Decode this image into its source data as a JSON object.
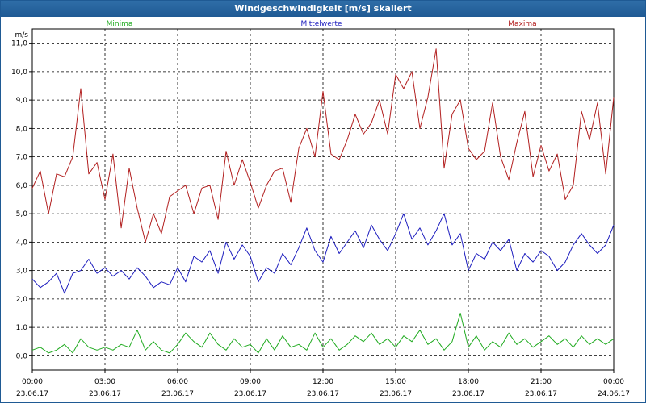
{
  "window": {
    "title": "Windgeschwindigkeit [m/s] skaliert"
  },
  "chart_data": {
    "type": "line",
    "title": "Windgeschwindigkeit [m/s] skaliert",
    "ylabel": "m/s",
    "xlabel": "",
    "ylim": [
      -0.5,
      11.5
    ],
    "xlim": [
      0,
      24
    ],
    "grid": true,
    "legend_position": "top",
    "yticks": [
      0.0,
      1.0,
      2.0,
      3.0,
      4.0,
      5.0,
      6.0,
      7.0,
      8.0,
      9.0,
      10.0,
      11.0
    ],
    "ytick_labels": [
      "0,0",
      "1,0",
      "2,0",
      "3,0",
      "4,0",
      "5,0",
      "6,0",
      "7,0",
      "8,0",
      "9,0",
      "10,0",
      "11,0"
    ],
    "xticks": [
      0,
      3,
      6,
      9,
      12,
      15,
      18,
      21,
      24
    ],
    "xtick_labels": [
      {
        "time": "00:00",
        "date": "23.06.17"
      },
      {
        "time": "03:00",
        "date": "23.06.17"
      },
      {
        "time": "06:00",
        "date": "23.06.17"
      },
      {
        "time": "09:00",
        "date": "23.06.17"
      },
      {
        "time": "12:00",
        "date": "23.06.17"
      },
      {
        "time": "15:00",
        "date": "23.06.17"
      },
      {
        "time": "18:00",
        "date": "23.06.17"
      },
      {
        "time": "21:00",
        "date": "23.06.17"
      },
      {
        "time": "00:00",
        "date": "24.06.17"
      }
    ],
    "series": [
      {
        "name": "Minima",
        "color": "#1faa1f",
        "points": [
          [
            0,
            0.2
          ],
          [
            0.33,
            0.3
          ],
          [
            0.67,
            0.1
          ],
          [
            1,
            0.2
          ],
          [
            1.33,
            0.4
          ],
          [
            1.67,
            0.1
          ],
          [
            2,
            0.6
          ],
          [
            2.33,
            0.3
          ],
          [
            2.67,
            0.2
          ],
          [
            3,
            0.3
          ],
          [
            3.33,
            0.2
          ],
          [
            3.67,
            0.4
          ],
          [
            4,
            0.3
          ],
          [
            4.33,
            0.9
          ],
          [
            4.67,
            0.2
          ],
          [
            5,
            0.5
          ],
          [
            5.33,
            0.2
          ],
          [
            5.67,
            0.1
          ],
          [
            6,
            0.4
          ],
          [
            6.33,
            0.8
          ],
          [
            6.67,
            0.5
          ],
          [
            7,
            0.3
          ],
          [
            7.33,
            0.8
          ],
          [
            7.67,
            0.4
          ],
          [
            8,
            0.2
          ],
          [
            8.33,
            0.6
          ],
          [
            8.67,
            0.3
          ],
          [
            9,
            0.4
          ],
          [
            9.33,
            0.1
          ],
          [
            9.67,
            0.6
          ],
          [
            10,
            0.2
          ],
          [
            10.33,
            0.7
          ],
          [
            10.67,
            0.3
          ],
          [
            11,
            0.4
          ],
          [
            11.33,
            0.2
          ],
          [
            11.67,
            0.8
          ],
          [
            12,
            0.3
          ],
          [
            12.33,
            0.6
          ],
          [
            12.67,
            0.2
          ],
          [
            13,
            0.4
          ],
          [
            13.33,
            0.7
          ],
          [
            13.67,
            0.5
          ],
          [
            14,
            0.8
          ],
          [
            14.33,
            0.4
          ],
          [
            14.67,
            0.6
          ],
          [
            15,
            0.3
          ],
          [
            15.33,
            0.7
          ],
          [
            15.67,
            0.5
          ],
          [
            16,
            0.9
          ],
          [
            16.33,
            0.4
          ],
          [
            16.67,
            0.6
          ],
          [
            17,
            0.2
          ],
          [
            17.33,
            0.5
          ],
          [
            17.67,
            1.5
          ],
          [
            18,
            0.3
          ],
          [
            18.33,
            0.7
          ],
          [
            18.67,
            0.2
          ],
          [
            19,
            0.5
          ],
          [
            19.33,
            0.3
          ],
          [
            19.67,
            0.8
          ],
          [
            20,
            0.4
          ],
          [
            20.33,
            0.6
          ],
          [
            20.67,
            0.3
          ],
          [
            21,
            0.5
          ],
          [
            21.33,
            0.7
          ],
          [
            21.67,
            0.4
          ],
          [
            22,
            0.6
          ],
          [
            22.33,
            0.3
          ],
          [
            22.67,
            0.7
          ],
          [
            23,
            0.4
          ],
          [
            23.33,
            0.6
          ],
          [
            23.67,
            0.4
          ],
          [
            24,
            0.6
          ]
        ]
      },
      {
        "name": "Mittelwerte",
        "color": "#1c1cbe",
        "points": [
          [
            0,
            2.7
          ],
          [
            0.33,
            2.4
          ],
          [
            0.67,
            2.6
          ],
          [
            1,
            2.9
          ],
          [
            1.33,
            2.2
          ],
          [
            1.67,
            2.9
          ],
          [
            2,
            3.0
          ],
          [
            2.33,
            3.4
          ],
          [
            2.67,
            2.9
          ],
          [
            3,
            3.1
          ],
          [
            3.33,
            2.8
          ],
          [
            3.67,
            3.0
          ],
          [
            4,
            2.7
          ],
          [
            4.33,
            3.1
          ],
          [
            4.67,
            2.8
          ],
          [
            5,
            2.4
          ],
          [
            5.33,
            2.6
          ],
          [
            5.67,
            2.5
          ],
          [
            6,
            3.1
          ],
          [
            6.33,
            2.6
          ],
          [
            6.67,
            3.5
          ],
          [
            7,
            3.3
          ],
          [
            7.33,
            3.7
          ],
          [
            7.67,
            2.9
          ],
          [
            8,
            4.0
          ],
          [
            8.33,
            3.4
          ],
          [
            8.67,
            3.9
          ],
          [
            9,
            3.5
          ],
          [
            9.33,
            2.6
          ],
          [
            9.67,
            3.1
          ],
          [
            10,
            2.9
          ],
          [
            10.33,
            3.6
          ],
          [
            10.67,
            3.2
          ],
          [
            11,
            3.8
          ],
          [
            11.33,
            4.5
          ],
          [
            11.67,
            3.7
          ],
          [
            12,
            3.3
          ],
          [
            12.33,
            4.2
          ],
          [
            12.67,
            3.6
          ],
          [
            13,
            4.0
          ],
          [
            13.33,
            4.4
          ],
          [
            13.67,
            3.8
          ],
          [
            14,
            4.6
          ],
          [
            14.33,
            4.1
          ],
          [
            14.67,
            3.7
          ],
          [
            15,
            4.3
          ],
          [
            15.33,
            5.0
          ],
          [
            15.67,
            4.1
          ],
          [
            16,
            4.5
          ],
          [
            16.33,
            3.9
          ],
          [
            16.67,
            4.4
          ],
          [
            17,
            5.0
          ],
          [
            17.33,
            3.9
          ],
          [
            17.67,
            4.3
          ],
          [
            18,
            3.0
          ],
          [
            18.33,
            3.6
          ],
          [
            18.67,
            3.4
          ],
          [
            19,
            4.0
          ],
          [
            19.33,
            3.7
          ],
          [
            19.67,
            4.1
          ],
          [
            20,
            3.0
          ],
          [
            20.33,
            3.6
          ],
          [
            20.67,
            3.3
          ],
          [
            21,
            3.7
          ],
          [
            21.33,
            3.5
          ],
          [
            21.67,
            3.0
          ],
          [
            22,
            3.3
          ],
          [
            22.33,
            3.9
          ],
          [
            22.67,
            4.3
          ],
          [
            23,
            3.9
          ],
          [
            23.33,
            3.6
          ],
          [
            23.67,
            3.9
          ],
          [
            24,
            4.6
          ]
        ]
      },
      {
        "name": "Maxima",
        "color": "#b21f1f",
        "points": [
          [
            0,
            5.9
          ],
          [
            0.33,
            6.5
          ],
          [
            0.67,
            5.0
          ],
          [
            1,
            6.4
          ],
          [
            1.33,
            6.3
          ],
          [
            1.67,
            7.0
          ],
          [
            2,
            9.4
          ],
          [
            2.33,
            6.4
          ],
          [
            2.67,
            6.8
          ],
          [
            3,
            5.5
          ],
          [
            3.33,
            7.1
          ],
          [
            3.67,
            4.5
          ],
          [
            4,
            6.6
          ],
          [
            4.33,
            5.2
          ],
          [
            4.67,
            4.0
          ],
          [
            5,
            5.0
          ],
          [
            5.33,
            4.3
          ],
          [
            5.67,
            5.6
          ],
          [
            6,
            5.8
          ],
          [
            6.33,
            6.0
          ],
          [
            6.67,
            5.0
          ],
          [
            7,
            5.9
          ],
          [
            7.33,
            6.0
          ],
          [
            7.67,
            4.8
          ],
          [
            8,
            7.2
          ],
          [
            8.33,
            6.0
          ],
          [
            8.67,
            6.9
          ],
          [
            9,
            6.1
          ],
          [
            9.33,
            5.2
          ],
          [
            9.67,
            6.0
          ],
          [
            10,
            6.5
          ],
          [
            10.33,
            6.6
          ],
          [
            10.67,
            5.4
          ],
          [
            11,
            7.3
          ],
          [
            11.33,
            8.0
          ],
          [
            11.67,
            7.0
          ],
          [
            12,
            9.3
          ],
          [
            12.33,
            7.1
          ],
          [
            12.67,
            6.9
          ],
          [
            13,
            7.6
          ],
          [
            13.33,
            8.5
          ],
          [
            13.67,
            7.8
          ],
          [
            14,
            8.2
          ],
          [
            14.33,
            9.0
          ],
          [
            14.67,
            7.8
          ],
          [
            15,
            9.9
          ],
          [
            15.33,
            9.4
          ],
          [
            15.67,
            10.0
          ],
          [
            16,
            8.0
          ],
          [
            16.33,
            9.1
          ],
          [
            16.67,
            10.8
          ],
          [
            17,
            6.6
          ],
          [
            17.33,
            8.5
          ],
          [
            17.67,
            9.0
          ],
          [
            18,
            7.3
          ],
          [
            18.33,
            6.9
          ],
          [
            18.67,
            7.2
          ],
          [
            19,
            8.9
          ],
          [
            19.33,
            7.0
          ],
          [
            19.67,
            6.2
          ],
          [
            20,
            7.5
          ],
          [
            20.33,
            8.6
          ],
          [
            20.67,
            6.3
          ],
          [
            21,
            7.4
          ],
          [
            21.33,
            6.5
          ],
          [
            21.67,
            7.1
          ],
          [
            22,
            5.5
          ],
          [
            22.33,
            6.0
          ],
          [
            22.67,
            8.6
          ],
          [
            23,
            7.6
          ],
          [
            23.33,
            8.9
          ],
          [
            23.67,
            6.4
          ],
          [
            24,
            9.1
          ]
        ]
      }
    ]
  }
}
